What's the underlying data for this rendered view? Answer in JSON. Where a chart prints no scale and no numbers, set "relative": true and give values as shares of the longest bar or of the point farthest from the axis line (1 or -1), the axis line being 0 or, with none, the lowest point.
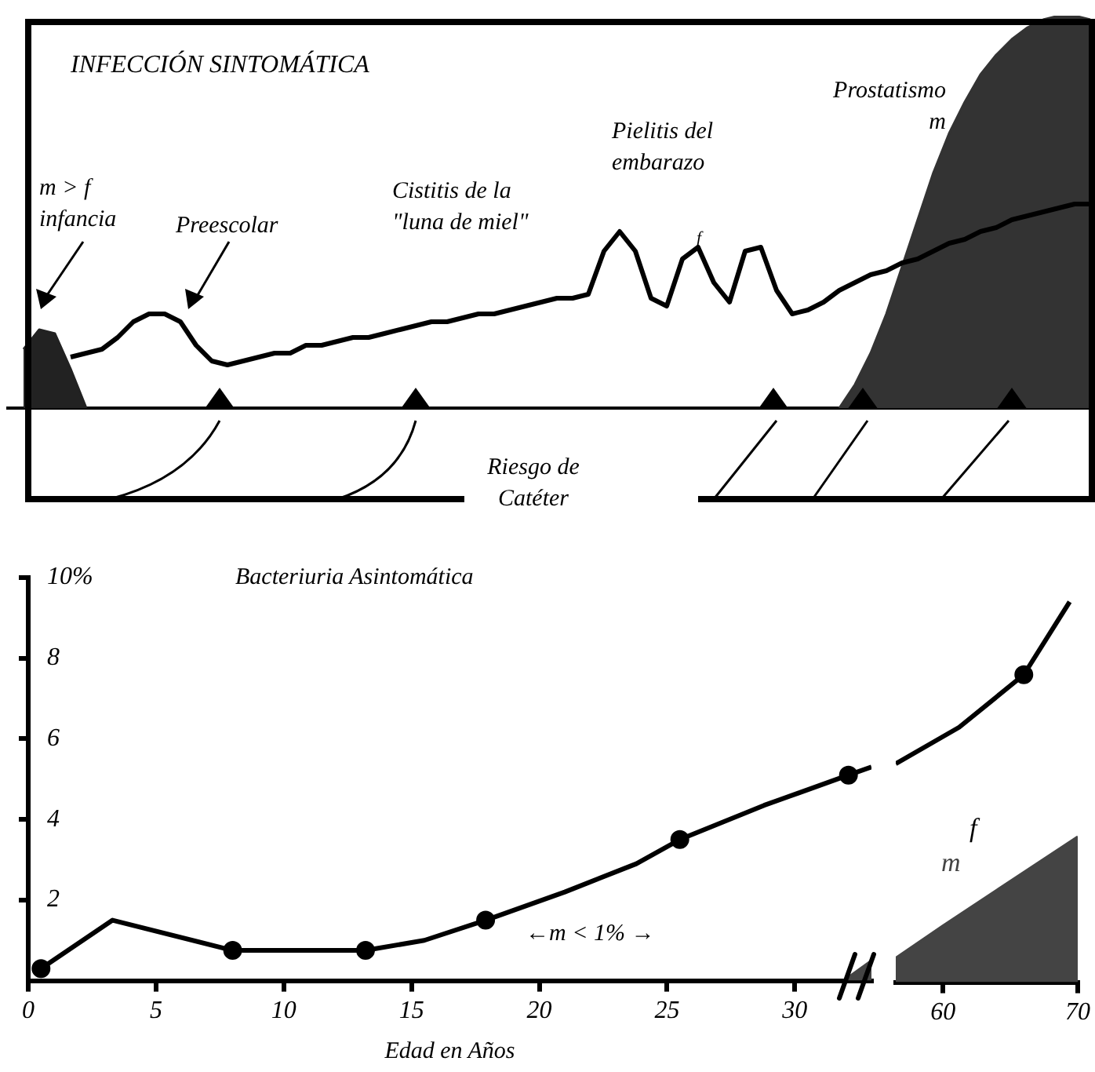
{
  "chart_data": [
    {
      "type": "line",
      "title": "INFECCIÓN SINTOMÁTICA",
      "relative": true,
      "grid": false,
      "legend": false,
      "tick_labels": false,
      "categories": [
        null,
        null,
        null,
        null,
        null,
        null,
        null,
        null,
        null,
        null,
        null,
        null,
        null,
        null,
        null,
        null,
        null,
        null,
        null,
        null,
        null,
        null,
        null,
        null,
        null,
        null,
        null,
        null,
        null,
        null,
        null,
        null,
        null,
        null,
        null,
        null,
        null,
        null,
        null,
        null,
        null,
        null,
        null,
        null,
        null,
        null,
        null,
        null,
        null,
        null,
        null,
        null,
        null,
        null,
        null,
        null,
        null,
        null,
        null,
        null,
        null,
        null,
        null,
        null,
        null,
        null,
        null,
        null,
        null,
        null
      ],
      "series": [
        {
          "color": "#000000",
          "values": [
            null,
            null,
            null,
            null,
            0.13,
            0.14,
            0.15,
            0.18,
            0.22,
            0.24,
            0.24,
            0.22,
            0.16,
            0.12,
            0.11,
            0.12,
            0.13,
            0.14,
            0.14,
            0.16,
            0.16,
            0.17,
            0.18,
            0.18,
            0.19,
            0.2,
            0.21,
            0.22,
            0.22,
            0.23,
            0.24,
            0.24,
            0.25,
            0.26,
            0.27,
            0.28,
            0.28,
            0.29,
            0.4,
            0.45,
            0.4,
            0.28,
            0.26,
            0.38,
            0.41,
            0.32,
            0.27,
            0.4,
            0.41,
            0.3,
            0.24,
            0.25,
            0.27,
            0.3,
            0.32,
            0.34,
            0.35,
            0.37,
            0.38,
            0.4,
            0.42,
            0.43,
            0.45,
            0.46,
            0.48,
            0.49,
            0.5,
            0.51,
            0.52,
            0.52
          ]
        },
        {
          "type": "area",
          "color": "#333333",
          "values": [
            null,
            null,
            null,
            null,
            null,
            null,
            null,
            null,
            null,
            null,
            null,
            null,
            null,
            null,
            null,
            null,
            null,
            null,
            null,
            null,
            null,
            null,
            null,
            null,
            null,
            null,
            null,
            null,
            null,
            null,
            null,
            null,
            null,
            null,
            null,
            null,
            null,
            null,
            null,
            null,
            null,
            null,
            null,
            null,
            null,
            null,
            null,
            null,
            null,
            null,
            null,
            null,
            null,
            0,
            0.06,
            0.14,
            0.24,
            0.36,
            0.48,
            0.6,
            0.7,
            0.78,
            0.85,
            0.9,
            0.94,
            0.97,
            0.99,
            1,
            1,
            0.99
          ]
        },
        {
          "type": "area",
          "color": "#222222",
          "values": [
            null,
            0.15,
            0.2,
            0.19,
            0.1,
            0,
            null,
            null,
            null,
            null,
            null,
            null,
            null,
            null,
            null,
            null,
            null,
            null,
            null,
            null,
            null,
            null,
            null,
            null,
            null,
            null,
            null,
            null,
            null,
            null,
            null,
            null,
            null,
            null,
            null,
            null,
            null,
            null,
            null,
            null,
            null,
            null,
            null,
            null,
            null,
            null,
            null,
            null,
            null,
            null,
            null,
            null,
            null,
            null,
            null,
            null,
            null,
            null,
            null,
            null,
            null,
            null,
            null,
            null,
            null,
            null,
            null,
            null,
            null,
            null
          ]
        }
      ],
      "annotations": [
        "m > f\ninfancia",
        "Preescolar",
        "Cistitis de la\n\"luna de miel\"",
        "Pielitis del\nembarazo",
        "f",
        "Prostatismo\nm",
        "Riesgo de\nCatéter"
      ]
    },
    {
      "type": "line",
      "title": "Bacteriuria Asintomática",
      "xlabel": "Edad en Años",
      "grid": false,
      "legend": false,
      "xlim": [
        0,
        33
      ],
      "xticks": [
        0,
        5,
        10,
        15,
        20,
        25,
        30
      ],
      "ylim": [
        0,
        10
      ],
      "yticks": [
        2,
        4,
        6,
        8,
        {
          "value": 10,
          "label": "10%"
        }
      ],
      "series": [
        {
          "color": "#000000",
          "marker": "none",
          "x": [
            0.5,
            3.3,
            8,
            13.2,
            15.5,
            17.9,
            21,
            23.8,
            25.5,
            28.8,
            32.1,
            33
          ],
          "values": [
            0.3,
            1.5,
            0.75,
            0.75,
            1,
            1.5,
            2.2,
            2.9,
            3.5,
            4.35,
            5.1,
            5.3
          ]
        },
        {
          "type": "scatter",
          "color": "#000000",
          "marker": "circle",
          "x": [
            0.5,
            8,
            13.2,
            17.9,
            25.5,
            32.1
          ],
          "values": [
            0.3,
            0.75,
            0.75,
            1.5,
            3.5,
            5.1
          ]
        },
        {
          "type": "area",
          "color": "#444444",
          "x": [
            31.9,
            33
          ],
          "values": [
            0,
            0.5
          ]
        }
      ],
      "annotations": [
        "←m < 1% →"
      ]
    },
    {
      "type": "line",
      "grid": false,
      "legend": false,
      "tick_labels": "x",
      "xlim": [
        56.5,
        70
      ],
      "xticks": [
        60,
        70
      ],
      "ylim": [
        0,
        10
      ],
      "series": [
        {
          "name": "f",
          "color": "#000000",
          "marker": "none",
          "x": [
            56.5,
            61.2,
            66,
            69.4
          ],
          "values": [
            5.4,
            6.3,
            7.6,
            9.4
          ]
        },
        {
          "type": "scatter",
          "color": "#000000",
          "marker": "circle",
          "x": [
            66
          ],
          "values": [
            7.6
          ]
        },
        {
          "type": "area",
          "name": "m",
          "color": "#444444",
          "x": [
            56.5,
            60,
            70
          ],
          "values": [
            0.6,
            1.4,
            3.6
          ]
        }
      ]
    }
  ]
}
